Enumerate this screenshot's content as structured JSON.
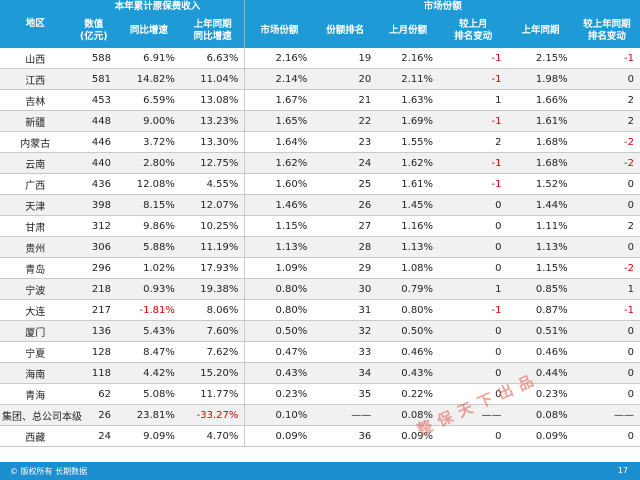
{
  "header": {
    "region": "地区",
    "group_premium": "本年累计原保费收入",
    "group_share": "市场份额",
    "value": "数值\n(亿元)",
    "yoy": "同比增速",
    "last_year_yoy": "上年同期\n同比增速",
    "share": "市场份额",
    "rank": "份额排名",
    "last_month": "上月份额",
    "rank_change_month": "较上月\n排名变动",
    "last_year": "上年同期",
    "rank_change_year": "较上年同期\n排名变动"
  },
  "rows": [
    {
      "region": "山西",
      "value": "588",
      "yoy": "6.91%",
      "last_yoy": "6.63%",
      "share": "2.16%",
      "rank": "19",
      "last_month": "2.16%",
      "chg_month": "-1",
      "last_year": "2.15%",
      "chg_year": "-1"
    },
    {
      "region": "江西",
      "value": "581",
      "yoy": "14.82%",
      "last_yoy": "11.04%",
      "share": "2.14%",
      "rank": "20",
      "last_month": "2.11%",
      "chg_month": "-1",
      "last_year": "1.98%",
      "chg_year": "0"
    },
    {
      "region": "吉林",
      "value": "453",
      "yoy": "6.59%",
      "last_yoy": "13.08%",
      "share": "1.67%",
      "rank": "21",
      "last_month": "1.63%",
      "chg_month": "1",
      "last_year": "1.66%",
      "chg_year": "2"
    },
    {
      "region": "新疆",
      "value": "448",
      "yoy": "9.00%",
      "last_yoy": "13.23%",
      "share": "1.65%",
      "rank": "22",
      "last_month": "1.69%",
      "chg_month": "-1",
      "last_year": "1.61%",
      "chg_year": "2"
    },
    {
      "region": "内蒙古",
      "value": "446",
      "yoy": "3.72%",
      "last_yoy": "13.30%",
      "share": "1.64%",
      "rank": "23",
      "last_month": "1.55%",
      "chg_month": "2",
      "last_year": "1.68%",
      "chg_year": "-2"
    },
    {
      "region": "云南",
      "value": "440",
      "yoy": "2.80%",
      "last_yoy": "12.75%",
      "share": "1.62%",
      "rank": "24",
      "last_month": "1.62%",
      "chg_month": "-1",
      "last_year": "1.68%",
      "chg_year": "-2"
    },
    {
      "region": "广西",
      "value": "436",
      "yoy": "12.08%",
      "last_yoy": "4.55%",
      "share": "1.60%",
      "rank": "25",
      "last_month": "1.61%",
      "chg_month": "-1",
      "last_year": "1.52%",
      "chg_year": "0"
    },
    {
      "region": "天津",
      "value": "398",
      "yoy": "8.15%",
      "last_yoy": "12.07%",
      "share": "1.46%",
      "rank": "26",
      "last_month": "1.45%",
      "chg_month": "0",
      "last_year": "1.44%",
      "chg_year": "0"
    },
    {
      "region": "甘肃",
      "value": "312",
      "yoy": "9.86%",
      "last_yoy": "10.25%",
      "share": "1.15%",
      "rank": "27",
      "last_month": "1.16%",
      "chg_month": "0",
      "last_year": "1.11%",
      "chg_year": "2"
    },
    {
      "region": "贵州",
      "value": "306",
      "yoy": "5.88%",
      "last_yoy": "11.19%",
      "share": "1.13%",
      "rank": "28",
      "last_month": "1.13%",
      "chg_month": "0",
      "last_year": "1.13%",
      "chg_year": "0"
    },
    {
      "region": "青岛",
      "value": "296",
      "yoy": "1.02%",
      "last_yoy": "17.93%",
      "share": "1.09%",
      "rank": "29",
      "last_month": "1.08%",
      "chg_month": "0",
      "last_year": "1.15%",
      "chg_year": "-2"
    },
    {
      "region": "宁波",
      "value": "218",
      "yoy": "0.93%",
      "last_yoy": "19.38%",
      "share": "0.80%",
      "rank": "30",
      "last_month": "0.79%",
      "chg_month": "1",
      "last_year": "0.85%",
      "chg_year": "1"
    },
    {
      "region": "大连",
      "value": "217",
      "yoy": "-1.81%",
      "last_yoy": "8.06%",
      "share": "0.80%",
      "rank": "31",
      "last_month": "0.80%",
      "chg_month": "-1",
      "last_year": "0.87%",
      "chg_year": "-1"
    },
    {
      "region": "厦门",
      "value": "136",
      "yoy": "5.43%",
      "last_yoy": "7.60%",
      "share": "0.50%",
      "rank": "32",
      "last_month": "0.50%",
      "chg_month": "0",
      "last_year": "0.51%",
      "chg_year": "0"
    },
    {
      "region": "宁夏",
      "value": "128",
      "yoy": "8.47%",
      "last_yoy": "7.62%",
      "share": "0.47%",
      "rank": "33",
      "last_month": "0.46%",
      "chg_month": "0",
      "last_year": "0.46%",
      "chg_year": "0"
    },
    {
      "region": "海南",
      "value": "118",
      "yoy": "4.42%",
      "last_yoy": "15.20%",
      "share": "0.43%",
      "rank": "34",
      "last_month": "0.43%",
      "chg_month": "0",
      "last_year": "0.44%",
      "chg_year": "0"
    },
    {
      "region": "青海",
      "value": "62",
      "yoy": "5.08%",
      "last_yoy": "11.77%",
      "share": "0.23%",
      "rank": "35",
      "last_month": "0.22%",
      "chg_month": "0",
      "last_year": "0.23%",
      "chg_year": "0"
    },
    {
      "region": "集团、总公司本级",
      "value": "26",
      "yoy": "23.81%",
      "last_yoy": "-33.27%",
      "share": "0.10%",
      "rank": "——",
      "last_month": "0.08%",
      "chg_month": "——",
      "last_year": "0.08%",
      "chg_year": "——"
    },
    {
      "region": "西藏",
      "value": "24",
      "yoy": "9.09%",
      "last_yoy": "4.70%",
      "share": "0.09%",
      "rank": "36",
      "last_month": "0.09%",
      "chg_month": "0",
      "last_year": "0.09%",
      "chg_year": "0"
    }
  ],
  "footer": {
    "copyright": "© 版权所有 长期数据",
    "page_number": "17"
  },
  "watermark": "整保天下出品",
  "colors": {
    "header_bg": "#1e9ad6",
    "footer_bg": "#1b8fd0",
    "negative": "#d00000",
    "zebra": "#f1f1f1"
  }
}
